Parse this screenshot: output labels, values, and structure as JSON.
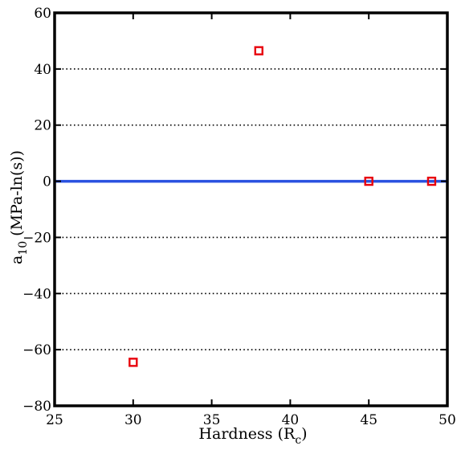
{
  "chart_data": {
    "type": "scatter",
    "title": "",
    "xlabel": {
      "main": "Hardness (R",
      "sub": "c",
      "tail": ")"
    },
    "ylabel": {
      "main": "a",
      "sub": "10",
      "tail": " (MPa-ln(s))"
    },
    "xlim": [
      25,
      50
    ],
    "ylim": [
      -80,
      60
    ],
    "xticks": [
      25,
      30,
      35,
      40,
      45,
      50
    ],
    "yticks": [
      -80,
      -60,
      -40,
      -20,
      0,
      20,
      40,
      60
    ],
    "xtick_labels": [
      "25",
      "30",
      "35",
      "40",
      "45",
      "50"
    ],
    "ytick_labels": [
      "−80",
      "−60",
      "−40",
      "−20",
      "0",
      "20",
      "40",
      "60"
    ],
    "grid": "horizontal-dotted",
    "series": [
      {
        "type": "scatter",
        "marker": "square",
        "color": "#e8000b",
        "points": [
          {
            "x": 30,
            "y": -64.5
          },
          {
            "x": 38,
            "y": 46.5
          },
          {
            "x": 45,
            "y": 0
          },
          {
            "x": 49,
            "y": 0
          }
        ]
      },
      {
        "type": "line",
        "color": "#2a52e0",
        "points": [
          {
            "x": 25,
            "y": 0
          },
          {
            "x": 50,
            "y": 0
          }
        ]
      }
    ]
  }
}
